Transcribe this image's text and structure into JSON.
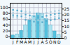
{
  "chart_data": {
    "type": "bar",
    "xlim": [
      0.3,
      12.7
    ],
    "xticks": [
      {
        "value": 1,
        "label": "J"
      },
      {
        "value": 2,
        "label": "F"
      },
      {
        "value": 3,
        "label": "M"
      },
      {
        "value": 4,
        "label": "A"
      },
      {
        "value": 5,
        "label": "M"
      },
      {
        "value": 6,
        "label": "J"
      },
      {
        "value": 7,
        "label": "J"
      },
      {
        "value": 8,
        "label": "A"
      },
      {
        "value": 9,
        "label": "S"
      },
      {
        "value": 10,
        "label": "O"
      },
      {
        "value": 11,
        "label": "N"
      },
      {
        "value": 12,
        "label": "D"
      }
    ],
    "ylim": [
      -5,
      115
    ],
    "yticks": [
      0,
      20,
      40,
      60,
      80,
      100
    ],
    "y2lim": [
      0,
      30
    ],
    "y2ticks": [
      0,
      5,
      10,
      15,
      20,
      25
    ],
    "grid": true,
    "series": [
      {
        "type": "bar",
        "axis": "y2",
        "x": [
          1,
          2,
          3,
          4,
          5,
          6,
          7,
          8,
          9,
          10,
          11,
          12
        ],
        "values": [
          2.5,
          3.5,
          6.5,
          11.0,
          15.5,
          19.0,
          21.5,
          21.0,
          16.5,
          11.0,
          6.0,
          3.0
        ],
        "colors": [
          "#55c0dc",
          "#aae4f0",
          "#55c0dc",
          "#aae4f0",
          "#55c0dc",
          "#aae4f0",
          "#55c0dc",
          "#aae4f0",
          "#55c0dc",
          "#aae4f0",
          "#55c0dc",
          "#aae4f0"
        ]
      },
      {
        "type": "scatter",
        "marker": "square",
        "x": [
          1,
          1,
          1,
          1,
          2,
          2,
          2,
          2,
          3,
          3,
          3,
          4,
          4,
          4,
          4,
          5,
          5,
          5,
          5,
          6,
          6,
          6,
          6,
          7,
          7,
          7,
          7,
          8,
          8,
          8,
          8,
          9,
          9,
          9,
          9,
          10,
          10,
          10,
          10,
          11,
          11,
          11,
          11,
          12,
          12,
          12,
          12
        ],
        "values": [
          92,
          82,
          74,
          68,
          90,
          80,
          72,
          65,
          88,
          78,
          70,
          86,
          76,
          66,
          58,
          84,
          73,
          62,
          54,
          80,
          70,
          60,
          52,
          78,
          67,
          57,
          48,
          79,
          68,
          58,
          50,
          82,
          72,
          62,
          54,
          85,
          75,
          65,
          57,
          88,
          78,
          68,
          60,
          90,
          80,
          72,
          64
        ],
        "colors": [
          "#55aacc",
          "#aaccdd",
          "#55aacc",
          "#aaccdd",
          "#55aacc",
          "#aaccdd",
          "#55aacc",
          "#aaccdd",
          "#55aacc",
          "#aaccdd",
          "#55aacc",
          "#aaccdd",
          "#55aacc",
          "#aaccdd",
          "#55aacc",
          "#aaccdd",
          "#55aacc",
          "#aaccdd",
          "#55aacc",
          "#aaccdd",
          "#55aacc",
          "#aaccdd",
          "#55aacc",
          "#aaccdd",
          "#55aacc",
          "#aaccdd",
          "#55aacc",
          "#aaccdd",
          "#55aacc",
          "#aaccdd",
          "#55aacc",
          "#aaccdd",
          "#55aacc",
          "#aaccdd",
          "#55aacc",
          "#aaccdd",
          "#55aacc",
          "#aaccdd",
          "#55aacc",
          "#aaccdd",
          "#55aacc",
          "#aaccdd",
          "#55aacc",
          "#aaccdd",
          "#55aacc",
          "#aaccdd",
          "#55aacc"
        ]
      }
    ]
  }
}
